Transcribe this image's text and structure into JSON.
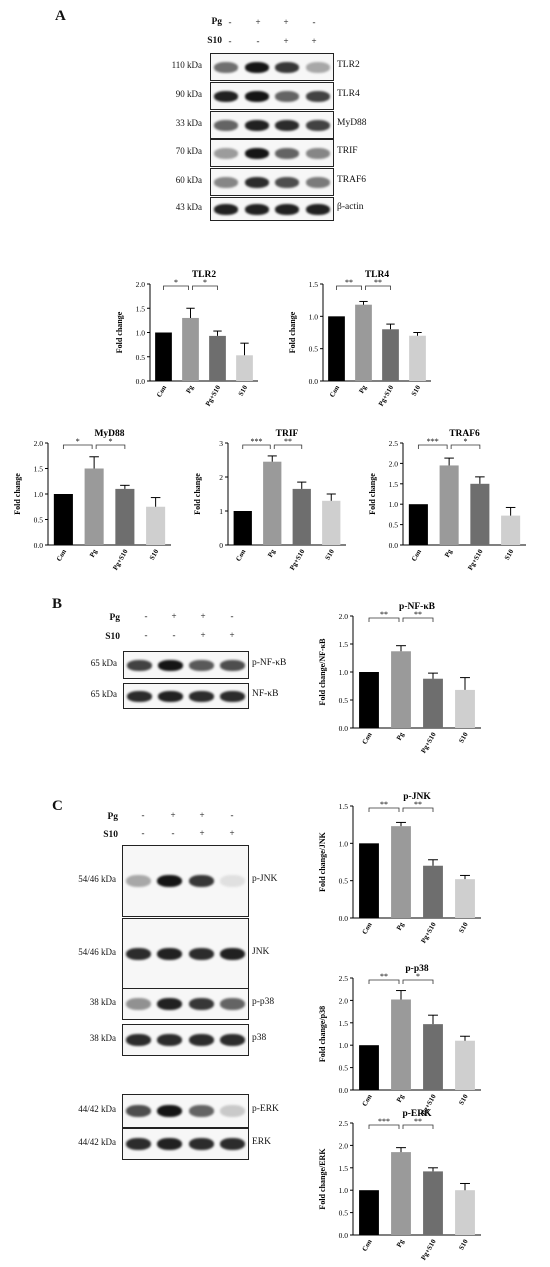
{
  "panels": [
    "A",
    "B",
    "C"
  ],
  "treatments": {
    "pg_label": "Pg",
    "s10_label": "S10",
    "pg_signs": [
      "-",
      "+",
      "+",
      "-"
    ],
    "s10_signs": [
      "-",
      "-",
      "+",
      "+"
    ]
  },
  "blots_A": [
    {
      "kda": "110 kDa",
      "protein": "TLR2",
      "intensity": [
        0.55,
        0.95,
        0.8,
        0.3
      ]
    },
    {
      "kda": "90 kDa",
      "protein": "TLR4",
      "intensity": [
        0.9,
        0.95,
        0.6,
        0.75
      ]
    },
    {
      "kda": "33 kDa",
      "protein": "MyD88",
      "intensity": [
        0.6,
        0.9,
        0.85,
        0.75
      ]
    },
    {
      "kda": "70 kDa",
      "protein": "TRIF",
      "intensity": [
        0.35,
        0.95,
        0.6,
        0.45
      ]
    },
    {
      "kda": "60 kDa",
      "protein": "TRAF6",
      "intensity": [
        0.45,
        0.85,
        0.7,
        0.5
      ]
    },
    {
      "kda": "43 kDa",
      "protein": "β-actin",
      "intensity": [
        0.9,
        0.9,
        0.9,
        0.9
      ]
    }
  ],
  "blots_B": [
    {
      "kda": "65 kDa",
      "protein": "p-NF-κB",
      "intensity": [
        0.75,
        0.95,
        0.65,
        0.7
      ]
    },
    {
      "kda": "65 kDa",
      "protein": "NF-κB",
      "intensity": [
        0.85,
        0.9,
        0.85,
        0.85
      ]
    }
  ],
  "blots_C": [
    {
      "kda": "54/46 kDa",
      "protein": "p-JNK",
      "intensity": [
        0.3,
        0.95,
        0.8,
        0.05
      ]
    },
    {
      "kda": "54/46 kDa",
      "protein": "JNK",
      "intensity": [
        0.85,
        0.9,
        0.85,
        0.9
      ]
    },
    {
      "kda": "38 kDa",
      "protein": "p-p38",
      "intensity": [
        0.4,
        0.9,
        0.8,
        0.6
      ]
    },
    {
      "kda": "38 kDa",
      "protein": "p38",
      "intensity": [
        0.85,
        0.85,
        0.85,
        0.85
      ]
    },
    {
      "kda": "44/42 kDa",
      "protein": "p-ERK",
      "intensity": [
        0.7,
        0.95,
        0.6,
        0.15
      ]
    },
    {
      "kda": "44/42 kDa",
      "protein": "ERK",
      "intensity": [
        0.85,
        0.9,
        0.85,
        0.85
      ]
    }
  ],
  "colors": [
    "#000000",
    "#9a9a9a",
    "#6e6e6e",
    "#cfcfcf"
  ],
  "chart_data": [
    {
      "type": "bar",
      "title": "TLR2",
      "ylabel": "Fold change",
      "categories": [
        "Con",
        "Pg",
        "Pg+S10",
        "S10"
      ],
      "values": [
        1.0,
        1.3,
        0.93,
        0.53
      ],
      "errors": [
        0,
        0.2,
        0.1,
        0.25
      ],
      "ylim": [
        0,
        2.0
      ],
      "yticks": [
        "0.0",
        "0.5",
        "1.0",
        "1.5",
        "2.0"
      ],
      "sig": [
        {
          "from": 0,
          "to": 1,
          "label": "*"
        },
        {
          "from": 1,
          "to": 2,
          "label": "*"
        }
      ]
    },
    {
      "type": "bar",
      "title": "TLR4",
      "ylabel": "Fold change",
      "categories": [
        "Con",
        "Pg",
        "Pg+S10",
        "S10"
      ],
      "values": [
        1.0,
        1.18,
        0.8,
        0.7
      ],
      "errors": [
        0,
        0.05,
        0.08,
        0.05
      ],
      "ylim": [
        0,
        1.5
      ],
      "yticks": [
        "0.0",
        "0.5",
        "1.0",
        "1.5"
      ],
      "sig": [
        {
          "from": 0,
          "to": 1,
          "label": "**"
        },
        {
          "from": 1,
          "to": 2,
          "label": "**"
        }
      ]
    },
    {
      "type": "bar",
      "title": "MyD88",
      "ylabel": "Fold change",
      "categories": [
        "Con",
        "Pg",
        "Pg+S10",
        "S10"
      ],
      "values": [
        1.0,
        1.5,
        1.1,
        0.75
      ],
      "errors": [
        0,
        0.23,
        0.07,
        0.18
      ],
      "ylim": [
        0,
        2.0
      ],
      "yticks": [
        "0.0",
        "0.5",
        "1.0",
        "1.5",
        "2.0"
      ],
      "sig": [
        {
          "from": 0,
          "to": 1,
          "label": "*"
        },
        {
          "from": 1,
          "to": 2,
          "label": "*"
        }
      ]
    },
    {
      "type": "bar",
      "title": "TRIF",
      "ylabel": "Fold change",
      "categories": [
        "Con",
        "Pg",
        "Pg+S10",
        "S10"
      ],
      "values": [
        1.0,
        2.45,
        1.65,
        1.3
      ],
      "errors": [
        0,
        0.17,
        0.2,
        0.2
      ],
      "ylim": [
        0,
        3
      ],
      "yticks": [
        "0",
        "1",
        "2",
        "3"
      ],
      "sig": [
        {
          "from": 0,
          "to": 1,
          "label": "***"
        },
        {
          "from": 1,
          "to": 2,
          "label": "**"
        }
      ]
    },
    {
      "type": "bar",
      "title": "TRAF6",
      "ylabel": "Fold change",
      "categories": [
        "Con",
        "Pg",
        "Pg+S10",
        "S10"
      ],
      "values": [
        1.0,
        1.95,
        1.5,
        0.72
      ],
      "errors": [
        0,
        0.18,
        0.17,
        0.2
      ],
      "ylim": [
        0,
        2.5
      ],
      "yticks": [
        "0.0",
        "0.5",
        "1.0",
        "1.5",
        "2.0",
        "2.5"
      ],
      "sig": [
        {
          "from": 0,
          "to": 1,
          "label": "***"
        },
        {
          "from": 1,
          "to": 2,
          "label": "*"
        }
      ]
    },
    {
      "type": "bar",
      "title": "p-NF-κB",
      "ylabel": "Fold change/NF-κB",
      "categories": [
        "Con",
        "Pg",
        "Pg+S10",
        "S10"
      ],
      "values": [
        1.0,
        1.37,
        0.88,
        0.68
      ],
      "errors": [
        0,
        0.1,
        0.1,
        0.22
      ],
      "ylim": [
        0,
        2.0
      ],
      "yticks": [
        "0.0",
        "0.5",
        "1.0",
        "1.5",
        "2.0"
      ],
      "sig": [
        {
          "from": 0,
          "to": 1,
          "label": "**"
        },
        {
          "from": 1,
          "to": 2,
          "label": "**"
        }
      ]
    },
    {
      "type": "bar",
      "title": "p-JNK",
      "ylabel": "Fold change/JNK",
      "categories": [
        "Con",
        "Pg",
        "Pg+S10",
        "S10"
      ],
      "values": [
        1.0,
        1.23,
        0.7,
        0.52
      ],
      "errors": [
        0,
        0.05,
        0.08,
        0.05
      ],
      "ylim": [
        0,
        1.5
      ],
      "yticks": [
        "0.0",
        "0.5",
        "1.0",
        "1.5"
      ],
      "sig": [
        {
          "from": 0,
          "to": 1,
          "label": "**"
        },
        {
          "from": 1,
          "to": 2,
          "label": "**"
        }
      ]
    },
    {
      "type": "bar",
      "title": "p-p38",
      "ylabel": "Fold change/p38",
      "categories": [
        "Con",
        "Pg",
        "Pg+S10",
        "S10"
      ],
      "values": [
        1.0,
        2.02,
        1.47,
        1.1
      ],
      "errors": [
        0,
        0.2,
        0.2,
        0.1
      ],
      "ylim": [
        0,
        2.5
      ],
      "yticks": [
        "0.0",
        "0.5",
        "1.0",
        "1.5",
        "2.0",
        "2.5"
      ],
      "sig": [
        {
          "from": 0,
          "to": 1,
          "label": "**"
        },
        {
          "from": 1,
          "to": 2,
          "label": "*"
        }
      ]
    },
    {
      "type": "bar",
      "title": "p-ERK",
      "ylabel": "Fold change/ERK",
      "categories": [
        "Con",
        "Pg",
        "Pg+S10",
        "S10"
      ],
      "values": [
        1.0,
        1.85,
        1.42,
        1.0
      ],
      "errors": [
        0,
        0.1,
        0.08,
        0.15
      ],
      "ylim": [
        0,
        2.5
      ],
      "yticks": [
        "0.0",
        "0.5",
        "1.0",
        "1.5",
        "2.0",
        "2.5"
      ],
      "sig": [
        {
          "from": 0,
          "to": 1,
          "label": "***"
        },
        {
          "from": 1,
          "to": 2,
          "label": "**"
        }
      ]
    }
  ]
}
